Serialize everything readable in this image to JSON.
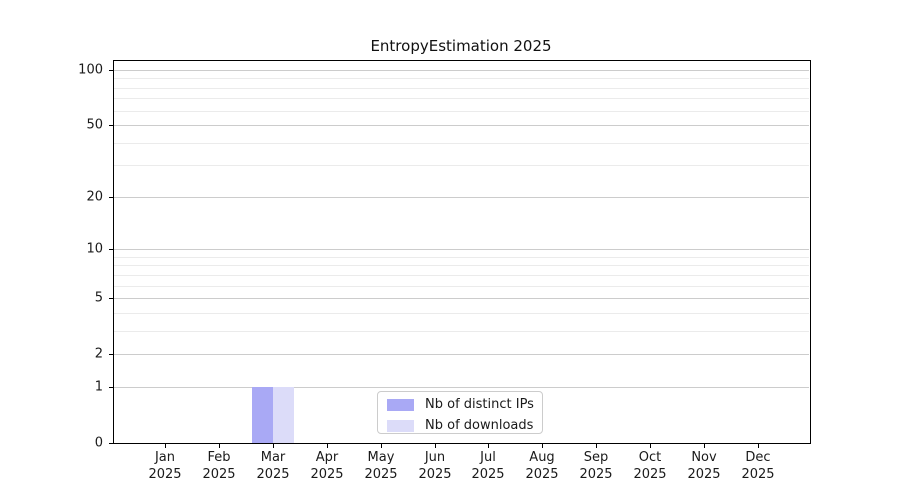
{
  "chart_data": {
    "type": "bar",
    "title": "EntropyEstimation 2025",
    "categories": [
      "Jan",
      "Feb",
      "Mar",
      "Apr",
      "May",
      "Jun",
      "Jul",
      "Aug",
      "Sep",
      "Oct",
      "Nov",
      "Dec"
    ],
    "x_tick_year": "2025",
    "series": [
      {
        "name": "Nb of distinct IPs",
        "color": "#a9a9f5",
        "values": [
          0,
          0,
          1,
          0,
          0,
          0,
          0,
          0,
          0,
          0,
          0,
          0
        ]
      },
      {
        "name": "Nb of downloads",
        "color": "#dcdcf9",
        "values": [
          0,
          0,
          1,
          0,
          0,
          0,
          0,
          0,
          0,
          0,
          0,
          0
        ]
      }
    ],
    "xlabel": "",
    "ylabel": "",
    "y_scale": "log1p",
    "y_major_ticks": [
      0,
      1,
      2,
      5,
      10,
      20,
      50,
      100
    ],
    "y_minor_gridlines": [
      3,
      4,
      6,
      7,
      8,
      9,
      30,
      40,
      60,
      70,
      80,
      90
    ],
    "ylim": [
      0,
      113
    ],
    "grid": "horizontal-only",
    "legend_position": "lower center"
  },
  "colors": {
    "background": "#ffffff",
    "spine": "#000000",
    "grid_major": "#cccccc",
    "grid_minor": "#ebebeb",
    "text": "#1a1a1a",
    "legend_border": "#cccccc"
  }
}
